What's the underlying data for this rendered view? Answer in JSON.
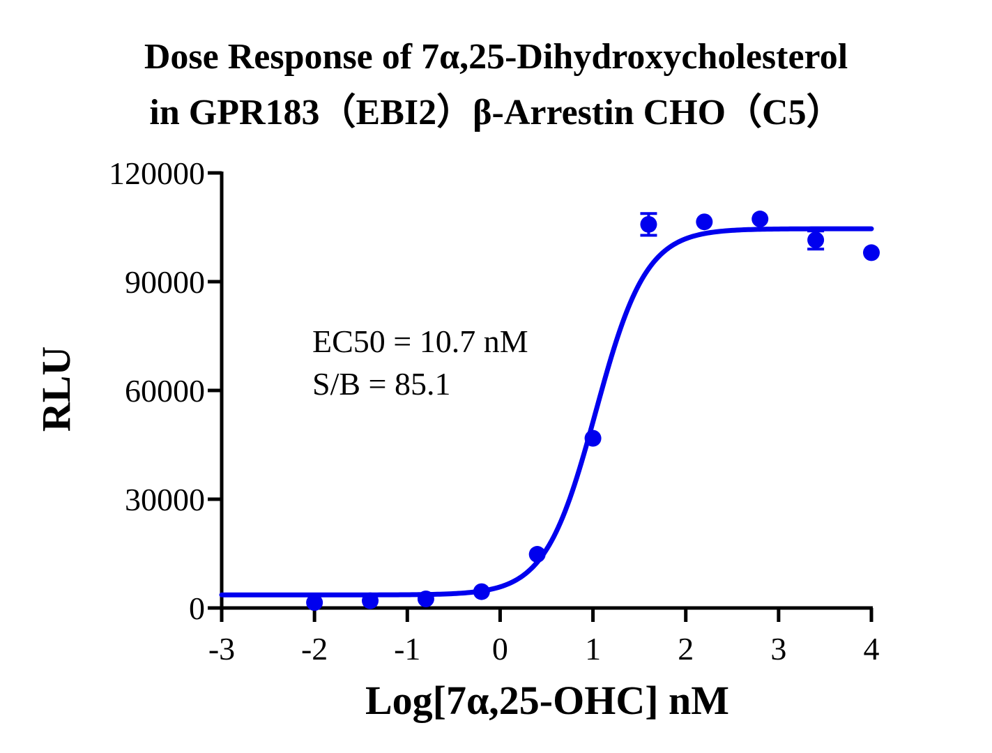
{
  "chart_data": {
    "type": "scatter",
    "title": [
      "Dose Response of 7α,25-Dihydroxycholesterol",
      "in GPR183（EBI2）β-Arrestin CHO（C5）"
    ],
    "xlabel": "Log[7α,25-OHC] nM",
    "ylabel": "RLU",
    "xlim": [
      -3,
      4
    ],
    "ylim": [
      0,
      120000
    ],
    "xticks": [
      "-3",
      "-2",
      "-1",
      "0",
      "1",
      "2",
      "3",
      "4"
    ],
    "yticks": [
      "0",
      "30000",
      "60000",
      "90000",
      "120000"
    ],
    "grid": false,
    "color": "#0000ee",
    "annotations": [
      "EC50 = 10.7 nM",
      "S/B = 85.1"
    ],
    "series": [
      {
        "points": [
          {
            "x": -2.0,
            "y": 1500,
            "err": 0
          },
          {
            "x": -1.4,
            "y": 2000,
            "err": 0
          },
          {
            "x": -0.8,
            "y": 2500,
            "err": 0
          },
          {
            "x": -0.2,
            "y": 4500,
            "err": 0
          },
          {
            "x": 0.4,
            "y": 14800,
            "err": 0
          },
          {
            "x": 1.0,
            "y": 46800,
            "err": 0
          },
          {
            "x": 1.6,
            "y": 105800,
            "err": 3000
          },
          {
            "x": 2.2,
            "y": 106500,
            "err": 0
          },
          {
            "x": 2.8,
            "y": 107300,
            "err": 0
          },
          {
            "x": 3.4,
            "y": 101500,
            "err": 2500
          },
          {
            "x": 4.0,
            "y": 98000,
            "err": 0
          }
        ]
      },
      {
        "fit": {
          "model": "4PL",
          "bottom": 3600,
          "top": 104600,
          "logEC50": 1.03,
          "hill": 1.6,
          "range": [
            -3,
            4
          ]
        }
      }
    ]
  }
}
